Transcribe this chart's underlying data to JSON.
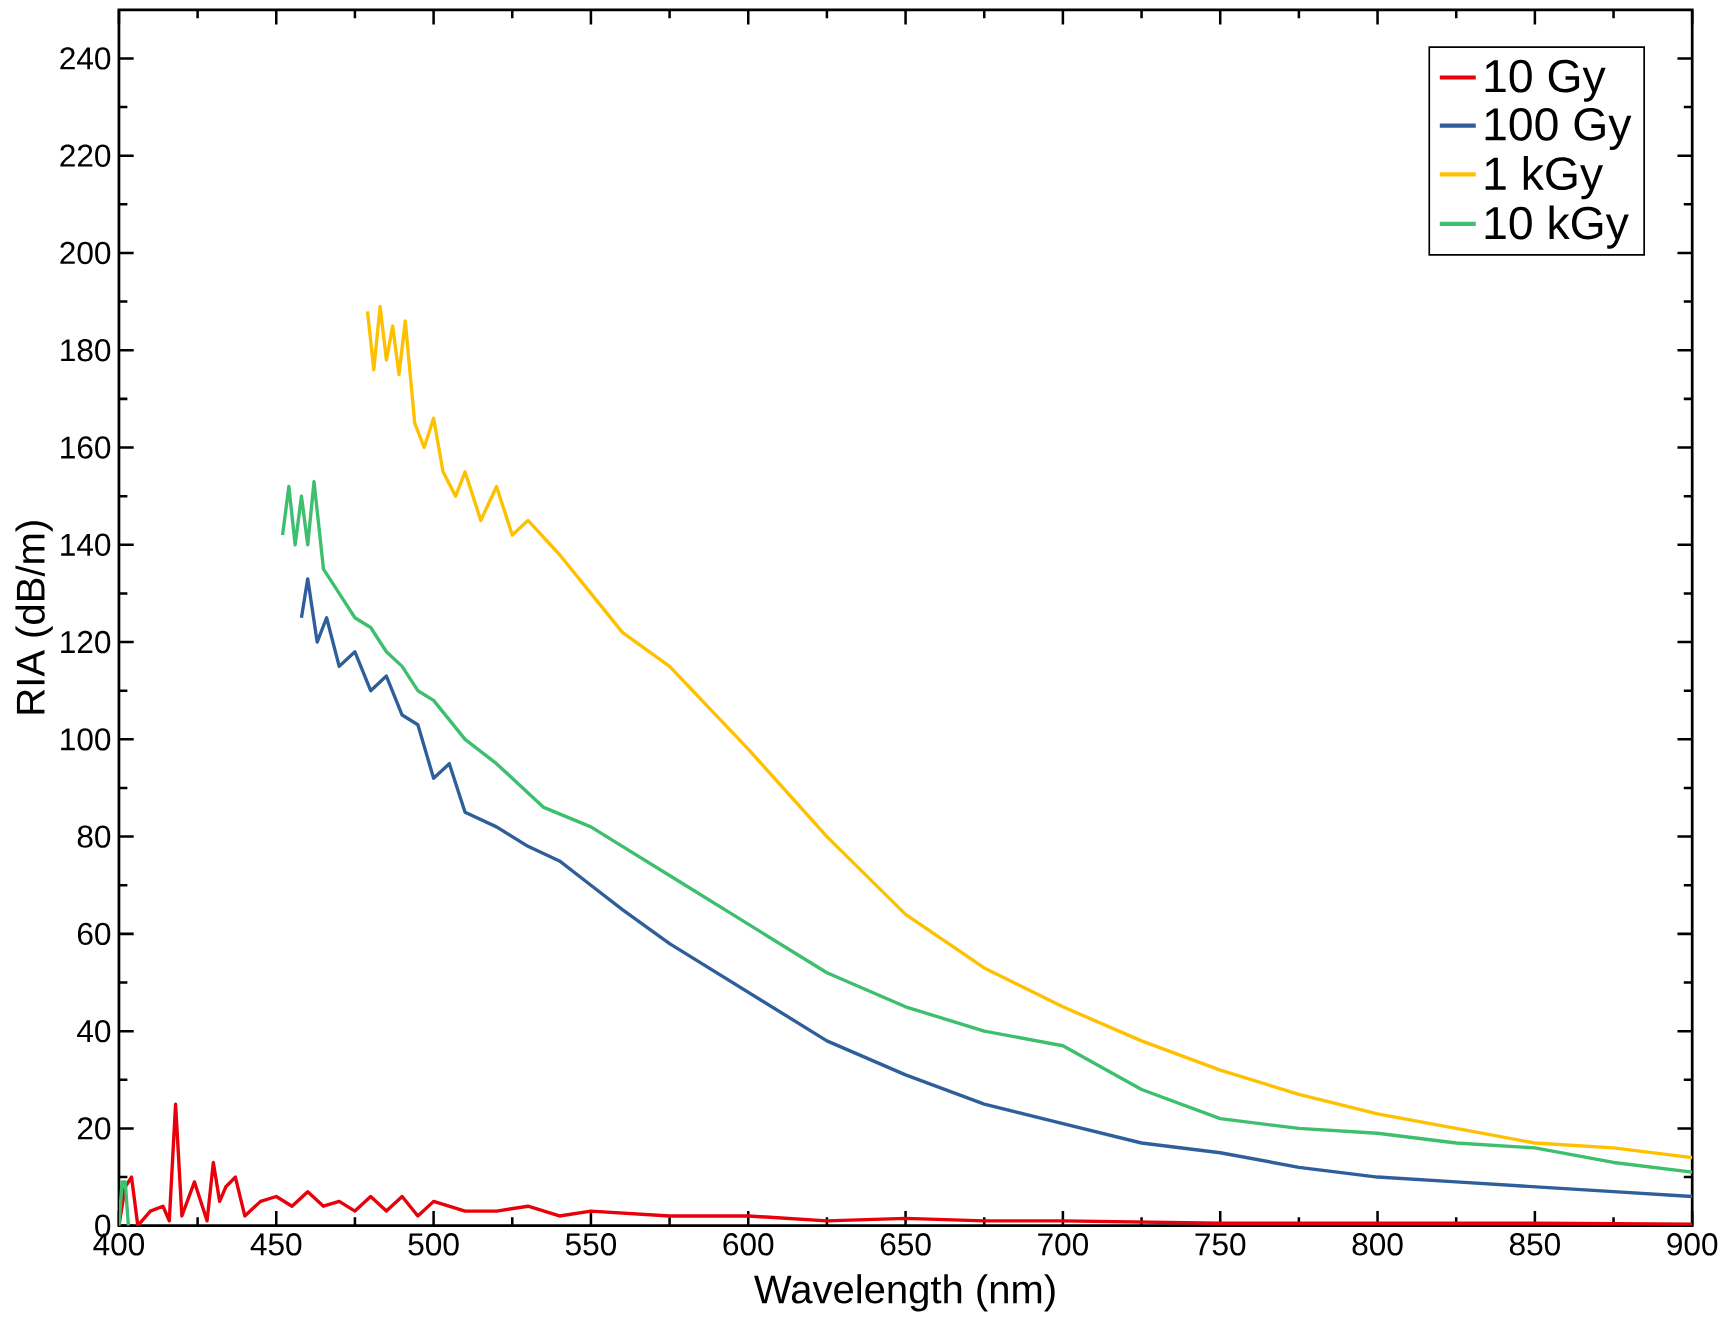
{
  "chart_data": {
    "type": "line",
    "xlabel": "Wavelength (nm)",
    "ylabel": "RIA (dB/m)",
    "xlim": [
      400,
      900
    ],
    "ylim": [
      0,
      250
    ],
    "xticks": [
      400,
      450,
      500,
      550,
      600,
      650,
      700,
      750,
      800,
      850,
      900
    ],
    "yticks": [
      0,
      20,
      40,
      60,
      80,
      100,
      120,
      140,
      160,
      180,
      200,
      220,
      240
    ],
    "legend": "top right",
    "grid": false,
    "marker": "none",
    "line_style": "solid",
    "series": [
      {
        "name": "10 Gy",
        "color": "#e8000b",
        "x": [
          400,
          402,
          404,
          406,
          410,
          414,
          416,
          418,
          420,
          424,
          428,
          430,
          432,
          434,
          437,
          440,
          445,
          450,
          455,
          460,
          465,
          470,
          475,
          480,
          485,
          490,
          495,
          500,
          510,
          520,
          530,
          540,
          550,
          575,
          600,
          625,
          650,
          675,
          700,
          750,
          800,
          850,
          900
        ],
        "values": [
          0,
          8,
          10,
          0,
          3,
          4,
          1,
          25,
          2,
          9,
          1,
          13,
          5,
          8,
          10,
          2,
          5,
          6,
          4,
          7,
          4,
          5,
          3,
          6,
          3,
          6,
          2,
          5,
          3,
          3,
          4,
          2,
          3,
          2,
          2,
          1,
          1.5,
          1,
          1,
          0.5,
          0.5,
          0.5,
          0.3
        ]
      },
      {
        "name": "100 Gy",
        "color": "#2f5f9a",
        "x": [
          458,
          460,
          463,
          466,
          470,
          475,
          480,
          485,
          490,
          495,
          500,
          505,
          510,
          520,
          530,
          540,
          550,
          560,
          575,
          600,
          625,
          650,
          675,
          700,
          725,
          750,
          775,
          800,
          825,
          850,
          875,
          900
        ],
        "values": [
          125,
          133,
          120,
          125,
          115,
          118,
          110,
          113,
          105,
          103,
          92,
          95,
          85,
          82,
          78,
          75,
          70,
          65,
          58,
          48,
          38,
          31,
          25,
          21,
          17,
          15,
          12,
          10,
          9,
          8,
          7,
          6
        ]
      },
      {
        "name": "1 kGy",
        "color": "#ffc000",
        "x": [
          479,
          481,
          483,
          485,
          487,
          489,
          491,
          494,
          497,
          500,
          503,
          507,
          510,
          515,
          520,
          525,
          530,
          540,
          550,
          560,
          575,
          600,
          625,
          650,
          675,
          700,
          725,
          750,
          775,
          800,
          825,
          850,
          875,
          900
        ],
        "values": [
          188,
          176,
          189,
          178,
          185,
          175,
          186,
          165,
          160,
          166,
          155,
          150,
          155,
          145,
          152,
          142,
          145,
          138,
          130,
          122,
          115,
          98,
          80,
          64,
          53,
          45,
          38,
          32,
          27,
          23,
          20,
          17,
          16,
          14
        ]
      },
      {
        "name": "10 kGy",
        "color": "#3dbf6e",
        "x": [
          400,
          401,
          402,
          403,
          404,
          452,
          454,
          456,
          458,
          460,
          462,
          465,
          470,
          475,
          480,
          485,
          490,
          495,
          500,
          510,
          520,
          525,
          535,
          550,
          560,
          575,
          600,
          625,
          650,
          675,
          700,
          725,
          750,
          775,
          800,
          825,
          850,
          875,
          900
        ],
        "values": [
          0,
          9,
          9,
          0,
          null,
          142,
          152,
          140,
          150,
          140,
          153,
          135,
          130,
          125,
          123,
          118,
          115,
          110,
          108,
          100,
          95,
          92,
          86,
          82,
          78,
          72,
          62,
          52,
          45,
          40,
          37,
          28,
          22,
          20,
          19,
          17,
          16,
          13,
          11
        ]
      }
    ]
  }
}
